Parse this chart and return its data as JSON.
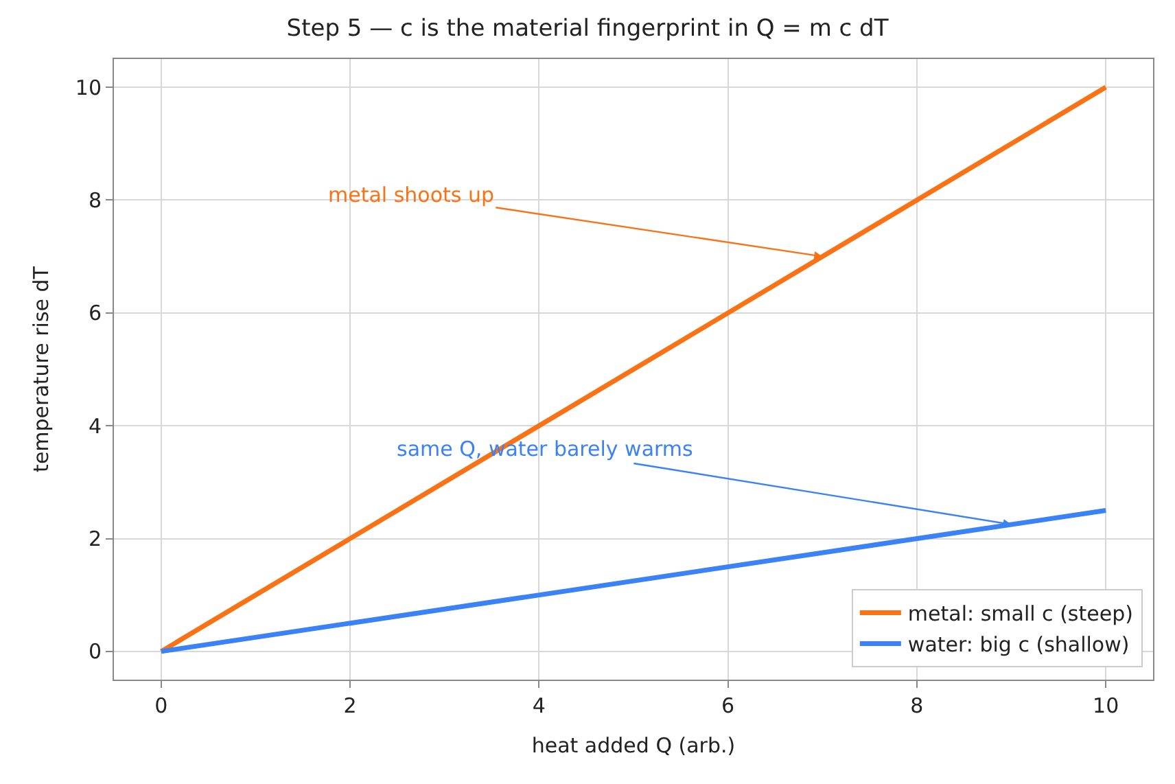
{
  "chart_data": {
    "type": "line",
    "title": "Step 5 — c is the material fingerprint in Q = m c dT",
    "xlabel": "heat added Q (arb.)",
    "ylabel": "temperature rise dT",
    "x": [
      0,
      10
    ],
    "series": [
      {
        "name": "metal: small c (steep)",
        "color": "#f97316",
        "values": [
          0,
          10
        ]
      },
      {
        "name": "water: big c (shallow)",
        "color": "#3b82f6",
        "values": [
          0,
          2.5
        ]
      }
    ],
    "xlim": [
      -0.5,
      10.5
    ],
    "xticks": [
      0,
      2,
      4,
      6,
      8,
      10
    ],
    "ylim": [
      -0.5,
      10.5
    ],
    "yticks": [
      0,
      2,
      4,
      6,
      8,
      10
    ],
    "annotations": [
      {
        "text": "metal shoots up",
        "x": 7,
        "y": 7
      },
      {
        "text": "same Q, water barely warms",
        "x": 9,
        "y": 2.25
      }
    ],
    "grid": true,
    "legend": "bottom right",
    "marker": "none",
    "line_style": "solid"
  }
}
